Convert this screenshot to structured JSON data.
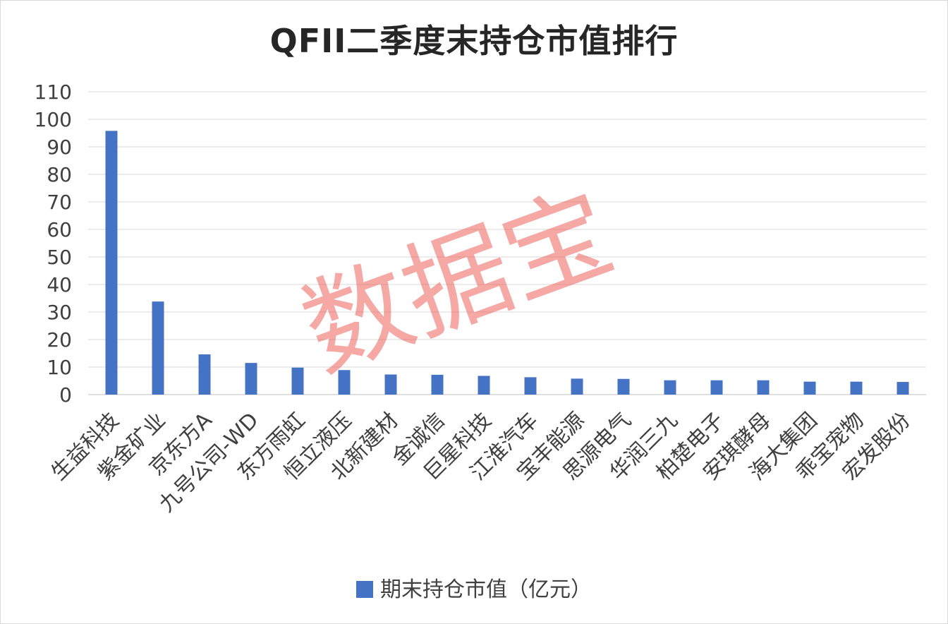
{
  "chart_data": {
    "type": "bar",
    "title": "QFII二季度末持仓市值排行",
    "categories": [
      "生益科技",
      "紫金矿业",
      "京东方A",
      "九号公司-WD",
      "东方雨虹",
      "恒立液压",
      "北新建材",
      "金诚信",
      "巨星科技",
      "江淮汽车",
      "宝丰能源",
      "思源电气",
      "华润三九",
      "柏楚电子",
      "安琪酵母",
      "海大集团",
      "乖宝宠物",
      "宏发股份"
    ],
    "series": [
      {
        "name": "期末持仓市值（亿元）",
        "color": "#4472c4",
        "values": [
          95.8,
          33.8,
          14.6,
          11.5,
          9.8,
          8.9,
          7.3,
          7.2,
          6.8,
          6.3,
          5.8,
          5.7,
          5.2,
          5.2,
          5.2,
          4.7,
          4.7,
          4.6
        ]
      }
    ],
    "xlabel": "",
    "ylabel": "",
    "ylim": [
      0,
      110
    ],
    "yticks": [
      0,
      10,
      20,
      30,
      40,
      50,
      60,
      70,
      80,
      90,
      100,
      110
    ],
    "grid": true,
    "legend_position": "bottom"
  },
  "watermark": "数据宝"
}
